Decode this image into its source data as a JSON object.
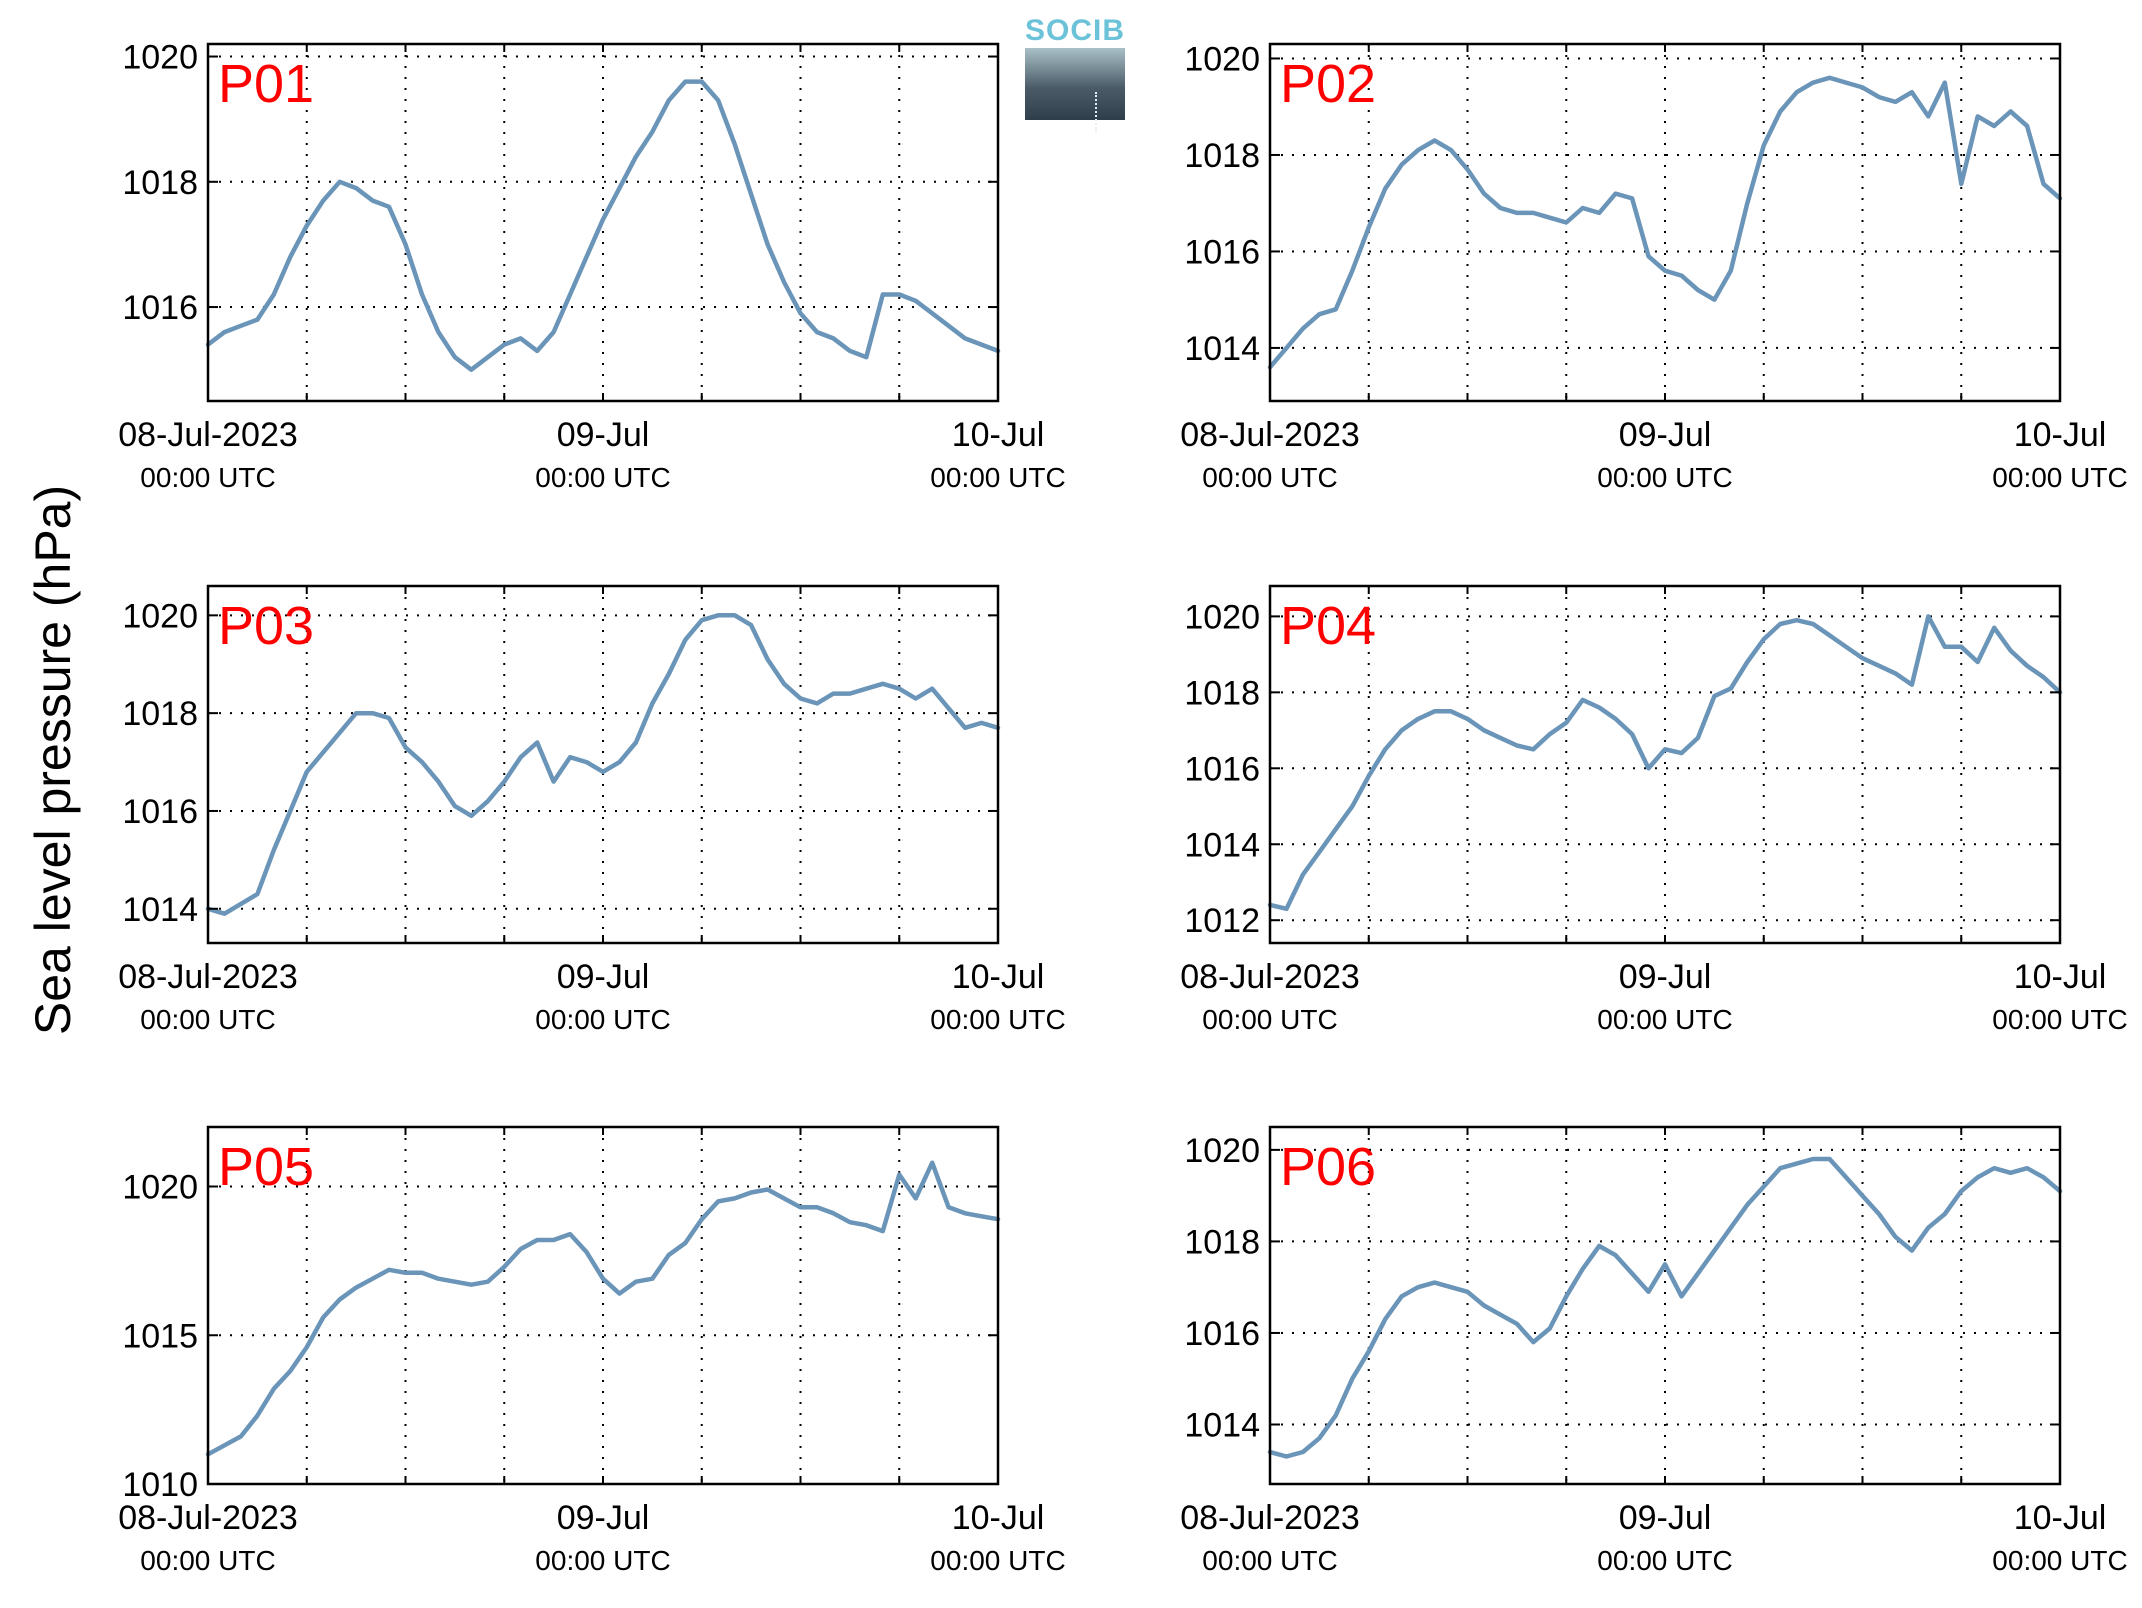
{
  "figure": {
    "ylabel": "Sea level pressure (hPa)",
    "logo_text": "SOCIB",
    "line_color": "#6a95b8",
    "panel_label_color": "#ff0000"
  },
  "chart_data": [
    {
      "type": "line",
      "panel": "P01",
      "x_ticks": [
        {
          "x": 0,
          "line1": "08-Jul-2023",
          "line2": "00:00 UTC"
        },
        {
          "x": 24,
          "line1": "09-Jul",
          "line2": "00:00 UTC"
        },
        {
          "x": 48,
          "line1": "10-Jul",
          "line2": "00:00 UTC"
        }
      ],
      "xlim": [
        0,
        48
      ],
      "ylim": [
        1014.5,
        1020.2
      ],
      "yticks": [
        1016,
        1018,
        1020
      ],
      "x_grid": [
        6,
        12,
        18,
        24,
        30,
        36,
        42
      ],
      "grid": true,
      "series": [
        {
          "x": [
            0,
            1,
            2,
            3,
            4,
            5,
            6,
            7,
            8,
            9,
            10,
            11,
            12,
            13,
            14,
            15,
            16,
            17,
            18,
            19,
            20,
            21,
            22,
            23,
            24,
            25,
            26,
            27,
            28,
            29,
            30,
            31,
            32,
            33,
            34,
            35,
            36,
            37,
            38,
            39,
            40,
            41,
            42,
            43,
            44,
            45,
            46,
            47,
            48
          ],
          "y": [
            1015.4,
            1015.6,
            1015.7,
            1015.8,
            1016.2,
            1016.8,
            1017.3,
            1017.7,
            1018.0,
            1017.9,
            1017.7,
            1017.6,
            1017.0,
            1016.2,
            1015.6,
            1015.2,
            1015.0,
            1015.2,
            1015.4,
            1015.5,
            1015.3,
            1015.6,
            1016.2,
            1016.8,
            1017.4,
            1017.9,
            1018.4,
            1018.8,
            1019.3,
            1019.6,
            1019.6,
            1019.3,
            1018.6,
            1017.8,
            1017.0,
            1016.4,
            1015.9,
            1015.6,
            1015.5,
            1015.3,
            1015.2,
            1016.2,
            1016.2,
            1016.1,
            1015.9,
            1015.7,
            1015.5,
            1015.4,
            1015.3
          ]
        }
      ]
    },
    {
      "type": "line",
      "panel": "P02",
      "x_ticks": [
        {
          "x": 0,
          "line1": "08-Jul-2023",
          "line2": "00:00 UTC"
        },
        {
          "x": 24,
          "line1": "09-Jul",
          "line2": "00:00 UTC"
        },
        {
          "x": 48,
          "line1": "10-Jul",
          "line2": "00:00 UTC"
        }
      ],
      "xlim": [
        0,
        48
      ],
      "ylim": [
        1012.9,
        1020.3
      ],
      "yticks": [
        1014,
        1016,
        1018,
        1020
      ],
      "x_grid": [
        6,
        12,
        18,
        24,
        30,
        36,
        42
      ],
      "grid": true,
      "series": [
        {
          "x": [
            0,
            1,
            2,
            3,
            4,
            5,
            6,
            7,
            8,
            9,
            10,
            11,
            12,
            13,
            14,
            15,
            16,
            17,
            18,
            19,
            20,
            21,
            22,
            23,
            24,
            25,
            26,
            27,
            28,
            29,
            30,
            31,
            32,
            33,
            34,
            35,
            36,
            37,
            38,
            39,
            40,
            41,
            42,
            43,
            44,
            45,
            46,
            47,
            48
          ],
          "y": [
            1013.6,
            1014.0,
            1014.4,
            1014.7,
            1014.8,
            1015.6,
            1016.5,
            1017.3,
            1017.8,
            1018.1,
            1018.3,
            1018.1,
            1017.7,
            1017.2,
            1016.9,
            1016.8,
            1016.8,
            1016.7,
            1016.6,
            1016.9,
            1016.8,
            1017.2,
            1017.1,
            1015.9,
            1015.6,
            1015.5,
            1015.2,
            1015.0,
            1015.6,
            1017.0,
            1018.2,
            1018.9,
            1019.3,
            1019.5,
            1019.6,
            1019.5,
            1019.4,
            1019.2,
            1019.1,
            1019.3,
            1018.8,
            1019.5,
            1017.4,
            1018.8,
            1018.6,
            1018.9,
            1018.6,
            1017.4,
            1017.1
          ]
        }
      ]
    },
    {
      "type": "line",
      "panel": "P03",
      "x_ticks": [
        {
          "x": 0,
          "line1": "08-Jul-2023",
          "line2": "00:00 UTC"
        },
        {
          "x": 24,
          "line1": "09-Jul",
          "line2": "00:00 UTC"
        },
        {
          "x": 48,
          "line1": "10-Jul",
          "line2": "00:00 UTC"
        }
      ],
      "xlim": [
        0,
        48
      ],
      "ylim": [
        1013.3,
        1020.6
      ],
      "yticks": [
        1014,
        1016,
        1018,
        1020
      ],
      "x_grid": [
        6,
        12,
        18,
        24,
        30,
        36,
        42
      ],
      "grid": true,
      "series": [
        {
          "x": [
            0,
            1,
            2,
            3,
            4,
            5,
            6,
            7,
            8,
            9,
            10,
            11,
            12,
            13,
            14,
            15,
            16,
            17,
            18,
            19,
            20,
            21,
            22,
            23,
            24,
            25,
            26,
            27,
            28,
            29,
            30,
            31,
            32,
            33,
            34,
            35,
            36,
            37,
            38,
            39,
            40,
            41,
            42,
            43,
            44,
            45,
            46,
            47,
            48
          ],
          "y": [
            1014.0,
            1013.9,
            1014.1,
            1014.3,
            1015.2,
            1016.0,
            1016.8,
            1017.2,
            1017.6,
            1018.0,
            1018.0,
            1017.9,
            1017.3,
            1017.0,
            1016.6,
            1016.1,
            1015.9,
            1016.2,
            1016.6,
            1017.1,
            1017.4,
            1016.6,
            1017.1,
            1017.0,
            1016.8,
            1017.0,
            1017.4,
            1018.2,
            1018.8,
            1019.5,
            1019.9,
            1020.0,
            1020.0,
            1019.8,
            1019.1,
            1018.6,
            1018.3,
            1018.2,
            1018.4,
            1018.4,
            1018.5,
            1018.6,
            1018.5,
            1018.3,
            1018.5,
            1018.1,
            1017.7,
            1017.8,
            1017.7
          ]
        }
      ]
    },
    {
      "type": "line",
      "panel": "P04",
      "x_ticks": [
        {
          "x": 0,
          "line1": "08-Jul-2023",
          "line2": "00:00 UTC"
        },
        {
          "x": 24,
          "line1": "09-Jul",
          "line2": "00:00 UTC"
        },
        {
          "x": 48,
          "line1": "10-Jul",
          "line2": "00:00 UTC"
        }
      ],
      "xlim": [
        0,
        48
      ],
      "ylim": [
        1011.4,
        1020.8
      ],
      "yticks": [
        1012,
        1014,
        1016,
        1018,
        1020
      ],
      "x_grid": [
        6,
        12,
        18,
        24,
        30,
        36,
        42
      ],
      "grid": true,
      "series": [
        {
          "x": [
            0,
            1,
            2,
            3,
            4,
            5,
            6,
            7,
            8,
            9,
            10,
            11,
            12,
            13,
            14,
            15,
            16,
            17,
            18,
            19,
            20,
            21,
            22,
            23,
            24,
            25,
            26,
            27,
            28,
            29,
            30,
            31,
            32,
            33,
            34,
            35,
            36,
            37,
            38,
            39,
            40,
            41,
            42,
            43,
            44,
            45,
            46,
            47,
            48
          ],
          "y": [
            1012.4,
            1012.3,
            1013.2,
            1013.8,
            1014.4,
            1015.0,
            1015.8,
            1016.5,
            1017.0,
            1017.3,
            1017.5,
            1017.5,
            1017.3,
            1017.0,
            1016.8,
            1016.6,
            1016.5,
            1016.9,
            1017.2,
            1017.8,
            1017.6,
            1017.3,
            1016.9,
            1016.0,
            1016.5,
            1016.4,
            1016.8,
            1017.9,
            1018.1,
            1018.8,
            1019.4,
            1019.8,
            1019.9,
            1019.8,
            1019.5,
            1019.2,
            1018.9,
            1018.7,
            1018.5,
            1018.2,
            1020.0,
            1019.2,
            1019.2,
            1018.8,
            1019.7,
            1019.1,
            1018.7,
            1018.4,
            1018.0
          ]
        }
      ]
    },
    {
      "type": "line",
      "panel": "P05",
      "x_ticks": [
        {
          "x": 0,
          "line1": "08-Jul-2023",
          "line2": "00:00 UTC"
        },
        {
          "x": 24,
          "line1": "09-Jul",
          "line2": "00:00 UTC"
        },
        {
          "x": 48,
          "line1": "10-Jul",
          "line2": "00:00 UTC"
        }
      ],
      "xlim": [
        0,
        48
      ],
      "ylim": [
        1010,
        1022
      ],
      "yticks": [
        1010,
        1015,
        1020
      ],
      "x_grid": [
        6,
        12,
        18,
        24,
        30,
        36,
        42
      ],
      "grid": true,
      "series": [
        {
          "x": [
            0,
            1,
            2,
            3,
            4,
            5,
            6,
            7,
            8,
            9,
            10,
            11,
            12,
            13,
            14,
            15,
            16,
            17,
            18,
            19,
            20,
            21,
            22,
            23,
            24,
            25,
            26,
            27,
            28,
            29,
            30,
            31,
            32,
            33,
            34,
            35,
            36,
            37,
            38,
            39,
            40,
            41,
            42,
            43,
            44,
            45,
            46,
            47,
            48
          ],
          "y": [
            1011.0,
            1011.3,
            1011.6,
            1012.3,
            1013.2,
            1013.8,
            1014.6,
            1015.6,
            1016.2,
            1016.6,
            1016.9,
            1017.2,
            1017.1,
            1017.1,
            1016.9,
            1016.8,
            1016.7,
            1016.8,
            1017.3,
            1017.9,
            1018.2,
            1018.2,
            1018.4,
            1017.8,
            1016.9,
            1016.4,
            1016.8,
            1016.9,
            1017.7,
            1018.1,
            1018.9,
            1019.5,
            1019.6,
            1019.8,
            1019.9,
            1019.6,
            1019.3,
            1019.3,
            1019.1,
            1018.8,
            1018.7,
            1018.5,
            1020.4,
            1019.6,
            1020.8,
            1019.3,
            1019.1,
            1019.0,
            1018.9
          ]
        }
      ]
    },
    {
      "type": "line",
      "panel": "P06",
      "x_ticks": [
        {
          "x": 0,
          "line1": "08-Jul-2023",
          "line2": "00:00 UTC"
        },
        {
          "x": 24,
          "line1": "09-Jul",
          "line2": "00:00 UTC"
        },
        {
          "x": 48,
          "line1": "10-Jul",
          "line2": "00:00 UTC"
        }
      ],
      "xlim": [
        0,
        48
      ],
      "ylim": [
        1012.7,
        1020.5
      ],
      "yticks": [
        1014,
        1016,
        1018,
        1020
      ],
      "x_grid": [
        6,
        12,
        18,
        24,
        30,
        36,
        42
      ],
      "grid": true,
      "series": [
        {
          "x": [
            0,
            1,
            2,
            3,
            4,
            5,
            6,
            7,
            8,
            9,
            10,
            11,
            12,
            13,
            14,
            15,
            16,
            17,
            18,
            19,
            20,
            21,
            22,
            23,
            24,
            25,
            26,
            27,
            28,
            29,
            30,
            31,
            32,
            33,
            34,
            35,
            36,
            37,
            38,
            39,
            40,
            41,
            42,
            43,
            44,
            45,
            46,
            47,
            48
          ],
          "y": [
            1013.4,
            1013.3,
            1013.4,
            1013.7,
            1014.2,
            1015.0,
            1015.6,
            1016.3,
            1016.8,
            1017.0,
            1017.1,
            1017.0,
            1016.9,
            1016.6,
            1016.4,
            1016.2,
            1015.8,
            1016.1,
            1016.8,
            1017.4,
            1017.9,
            1017.7,
            1017.3,
            1016.9,
            1017.5,
            1016.8,
            1017.3,
            1017.8,
            1018.3,
            1018.8,
            1019.2,
            1019.6,
            1019.7,
            1019.8,
            1019.8,
            1019.4,
            1019.0,
            1018.6,
            1018.1,
            1017.8,
            1018.3,
            1018.6,
            1019.1,
            1019.4,
            1019.6,
            1019.5,
            1019.6,
            1019.4,
            1019.1
          ]
        }
      ]
    }
  ]
}
